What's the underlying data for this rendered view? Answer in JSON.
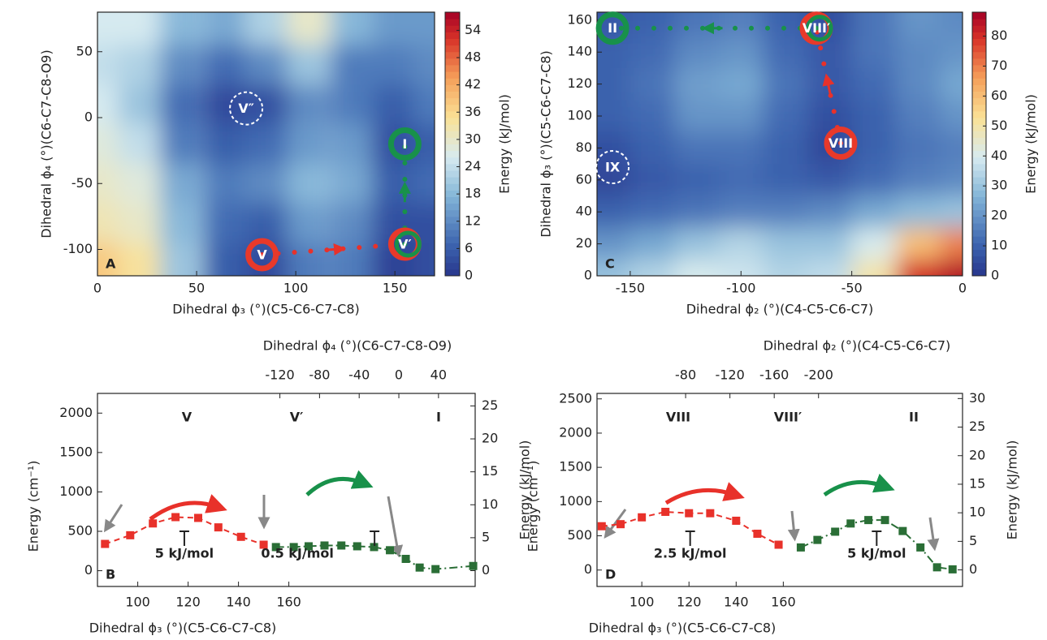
{
  "chart_data": [
    {
      "type": "contour",
      "panel": "A",
      "xlabel": "Dihedral ϕ₃ (°)(C5-C6-C7-C8)",
      "ylabel": "Dihedral ϕ₄ (°)(C6-C7-C8-O9)",
      "colorbar_label": "Energy (kJ/mol)",
      "xlim": [
        0,
        170
      ],
      "ylim": [
        -120,
        80
      ],
      "xticks": [
        0,
        50,
        100,
        150
      ],
      "yticks": [
        -100,
        -50,
        0,
        50
      ],
      "clim": [
        0,
        58
      ],
      "cticks": [
        0,
        6,
        12,
        18,
        24,
        30,
        36,
        42,
        48,
        54
      ],
      "x": [
        0,
        21,
        42,
        64,
        85,
        106,
        128,
        149,
        170
      ],
      "y": [
        70,
        40,
        10,
        -20,
        -50,
        -80,
        -110
      ],
      "z": [
        [
          26,
          26,
          18,
          16,
          22,
          30,
          18,
          14,
          14
        ],
        [
          24,
          22,
          12,
          8,
          12,
          20,
          10,
          10,
          12
        ],
        [
          26,
          20,
          8,
          3,
          4,
          12,
          10,
          6,
          10
        ],
        [
          28,
          24,
          10,
          6,
          8,
          14,
          14,
          4,
          6
        ],
        [
          30,
          28,
          16,
          10,
          12,
          18,
          16,
          6,
          8
        ],
        [
          32,
          30,
          18,
          8,
          6,
          14,
          12,
          4,
          4
        ],
        [
          38,
          34,
          20,
          6,
          3,
          10,
          10,
          2,
          4
        ]
      ],
      "annotations": [
        {
          "label": "V",
          "x": 83,
          "y": -104,
          "color": "#e8392a"
        },
        {
          "label": "V′",
          "x": 155,
          "y": -96,
          "color": "#e8392a",
          "ring": "#18914a"
        },
        {
          "label": "I",
          "x": 155,
          "y": -20,
          "color": "#18914a"
        },
        {
          "label": "V″",
          "x": 75,
          "y": 7,
          "color": "#ffffff",
          "dashed": true
        }
      ]
    },
    {
      "type": "line",
      "panel": "B",
      "xlabel": "Dihedral ϕ₃ (°)(C5-C6-C7-C8)",
      "x2label": "Dihedral ϕ₄ (°)(C6-C7-C8-O9)",
      "ylabel": "Energy (cm⁻¹)",
      "y2label": "Energy (kJ/mol)",
      "xlim": [
        84,
        234
      ],
      "xticks": [
        100,
        120,
        140,
        160
      ],
      "x2lim": [
        -304,
        77
      ],
      "x2ticks": [
        -120,
        -80,
        -40,
        0,
        40
      ],
      "ylim": [
        -200,
        2250
      ],
      "yticks": [
        0,
        500,
        1000,
        1500,
        2000
      ],
      "y2lim": [
        -2.4,
        26.9
      ],
      "y2ticks": [
        0,
        5,
        10,
        15,
        20,
        25
      ],
      "series": [
        {
          "color": "#e8312a",
          "dash": "7,5",
          "xaxis": "x",
          "x": [
            87,
            97,
            106,
            115,
            124,
            132,
            141,
            150
          ],
          "values": [
            340,
            450,
            600,
            680,
            670,
            550,
            430,
            330
          ]
        },
        {
          "color": "#2a6e36",
          "dash": "10,4,2,4",
          "xaxis": "x2",
          "x": [
            -124,
            -106,
            -91,
            -75,
            -58,
            -42,
            -25,
            -9,
            7,
            21,
            37,
            75
          ],
          "values": [
            300,
            300,
            310,
            320,
            320,
            310,
            300,
            260,
            150,
            40,
            20,
            60
          ]
        }
      ],
      "notes": [
        "5 kJ/mol",
        "0.5 kJ/mol"
      ],
      "state_labels": [
        "V",
        "V′",
        "I"
      ]
    },
    {
      "type": "contour",
      "panel": "C",
      "xlabel": "Dihedral ϕ₂ (°)(C4-C5-C6-C7)",
      "ylabel": "Dihedral ϕ₃ (°)(C5-C6-C7-C8)",
      "colorbar_label": "Energy (kJ/mol)",
      "xlim": [
        -165,
        0
      ],
      "ylim": [
        0,
        165
      ],
      "xticks": [
        -150,
        -100,
        -50,
        0
      ],
      "yticks": [
        0,
        20,
        40,
        60,
        80,
        100,
        120,
        140,
        160
      ],
      "clim": [
        0,
        88
      ],
      "cticks": [
        0,
        10,
        20,
        30,
        40,
        50,
        60,
        70,
        80
      ],
      "x": [
        -160,
        -140,
        -120,
        -100,
        -80,
        -60,
        -40,
        -20,
        0
      ],
      "y": [
        160,
        140,
        120,
        100,
        80,
        60,
        40,
        20,
        0
      ],
      "z": [
        [
          8,
          10,
          14,
          16,
          10,
          6,
          14,
          20,
          18
        ],
        [
          10,
          12,
          18,
          20,
          12,
          8,
          14,
          18,
          20
        ],
        [
          10,
          14,
          22,
          24,
          14,
          8,
          12,
          18,
          24
        ],
        [
          10,
          12,
          20,
          20,
          12,
          6,
          10,
          16,
          20
        ],
        [
          6,
          10,
          14,
          14,
          10,
          4,
          10,
          14,
          16
        ],
        [
          4,
          8,
          10,
          12,
          10,
          8,
          12,
          16,
          18
        ],
        [
          10,
          12,
          14,
          16,
          16,
          18,
          24,
          28,
          30
        ],
        [
          20,
          24,
          30,
          34,
          30,
          30,
          40,
          60,
          70
        ],
        [
          30,
          34,
          40,
          38,
          34,
          36,
          50,
          80,
          86
        ]
      ],
      "annotations": [
        {
          "label": "VIII",
          "x": -55,
          "y": 83,
          "color": "#e8392a"
        },
        {
          "label": "VIII′",
          "x": -66,
          "y": 155,
          "color": "#e8392a",
          "ring": "#18914a"
        },
        {
          "label": "II",
          "x": -158,
          "y": 155,
          "color": "#18914a"
        },
        {
          "label": "IX",
          "x": -158,
          "y": 68,
          "color": "#ffffff",
          "dashed": true
        }
      ]
    },
    {
      "type": "line",
      "panel": "D",
      "xlabel": "Dihedral ϕ₃ (°)(C5-C6-C7-C8)",
      "x2label": "Dihedral ϕ₂ (°)(C4-C5-C6-C7)",
      "ylabel": "Energy (cm⁻¹)",
      "y2label": "Energy (kJ/mol)",
      "xlim": [
        81,
        236
      ],
      "xticks": [
        100,
        120,
        140,
        160
      ],
      "x2lim": [
        0,
        -330
      ],
      "x2ticks": [
        -80,
        -120,
        -160,
        -200
      ],
      "ylim": [
        -240,
        2580
      ],
      "yticks": [
        0,
        500,
        1000,
        1500,
        2000,
        2500
      ],
      "y2lim": [
        -2.9,
        30.9
      ],
      "y2ticks": [
        0,
        5,
        10,
        15,
        20,
        25,
        30
      ],
      "series": [
        {
          "color": "#e8312a",
          "dash": "7,5",
          "xaxis": "x",
          "x": [
            83,
            91,
            100,
            110,
            120,
            129,
            140,
            149,
            158
          ],
          "values": [
            640,
            670,
            770,
            850,
            830,
            830,
            720,
            530,
            370
          ]
        },
        {
          "color": "#2a6e36",
          "dash": "10,4,2,4",
          "xaxis": "x2",
          "x": [
            -184,
            -199,
            -215,
            -229,
            -245,
            -260,
            -276,
            -292,
            -307,
            -321
          ],
          "values": [
            330,
            440,
            560,
            680,
            730,
            730,
            570,
            330,
            40,
            10
          ]
        }
      ],
      "notes": [
        "2.5 kJ/mol",
        "5 kJ/mol"
      ],
      "state_labels": [
        "VIII",
        "VIII′",
        "II"
      ]
    }
  ]
}
